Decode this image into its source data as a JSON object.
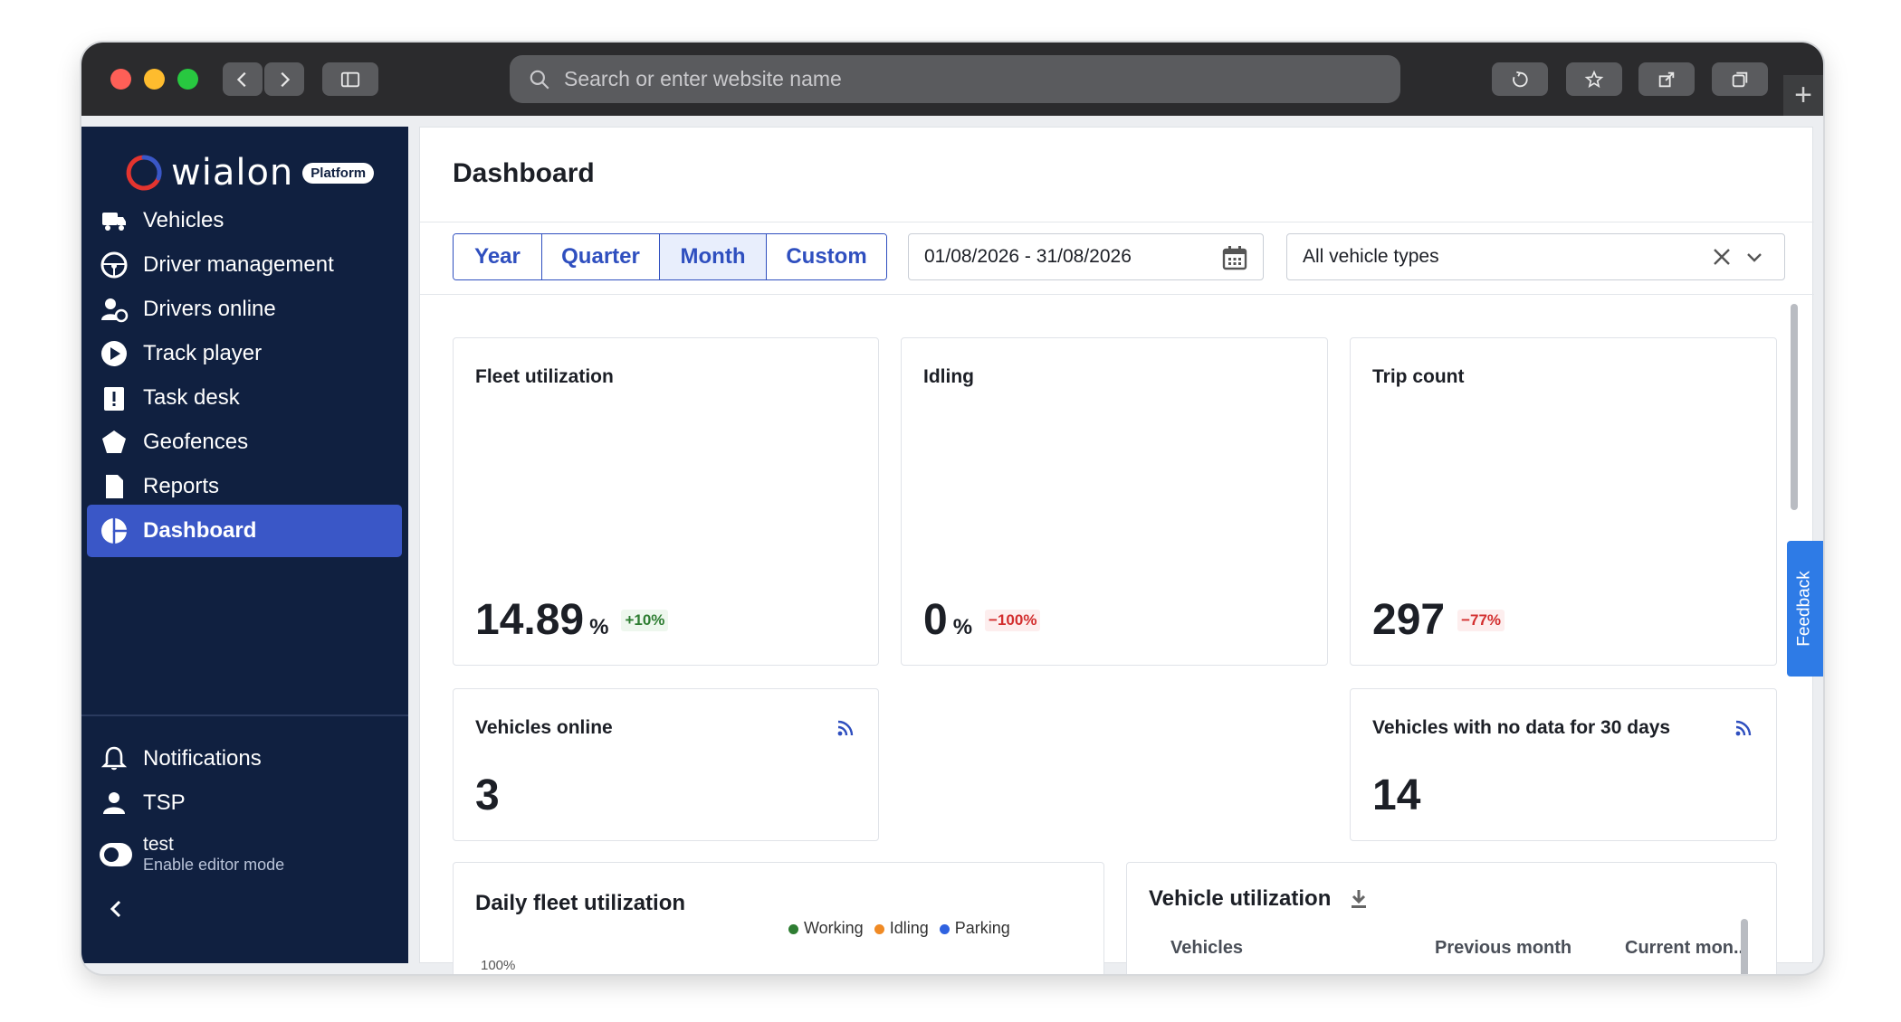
{
  "browser": {
    "address_placeholder": "Search or enter website name"
  },
  "sidebar": {
    "logo_text": "wialon",
    "logo_badge": "Platform",
    "items": [
      {
        "label": "Vehicles",
        "icon": "vehicles-icon"
      },
      {
        "label": "Driver management",
        "icon": "steering-wheel-icon"
      },
      {
        "label": "Drivers online",
        "icon": "driver-online-icon"
      },
      {
        "label": "Track player",
        "icon": "play-icon"
      },
      {
        "label": "Task desk",
        "icon": "clipboard-alert-icon"
      },
      {
        "label": "Geofences",
        "icon": "pentagon-icon"
      },
      {
        "label": "Reports",
        "icon": "document-icon"
      },
      {
        "label": "Dashboard",
        "icon": "pie-chart-icon",
        "active": true
      },
      {
        "label": "Notifications",
        "icon": "bell-icon"
      },
      {
        "label": "TSP",
        "icon": "person-icon"
      }
    ],
    "editor": {
      "name": "test",
      "sub": "Enable editor mode"
    }
  },
  "main": {
    "title": "Dashboard",
    "periods": [
      "Year",
      "Quarter",
      "Month",
      "Custom"
    ],
    "selected_period": "Month",
    "date_range": "01/08/2026 - 31/08/2026",
    "vehicle_type": "All vehicle types",
    "cards": {
      "fleet": {
        "title": "Fleet utilization",
        "value": "14.89",
        "unit": "%",
        "delta": "+10%"
      },
      "idling": {
        "title": "Idling",
        "value": "0",
        "unit": "%",
        "delta": "−100%"
      },
      "trips": {
        "title": "Trip count",
        "value": "297",
        "delta": "−77%"
      },
      "online": {
        "title": "Vehicles online",
        "value": "3"
      },
      "nodata": {
        "title": "Vehicles with no data for 30 days",
        "value": "14"
      }
    },
    "daily": {
      "title": "Daily fleet utilization",
      "legend": [
        "Working",
        "Idling",
        "Parking"
      ],
      "axis_top": "100%"
    },
    "utilization": {
      "title": "Vehicle utilization",
      "columns": [
        "Vehicles",
        "Previous month",
        "Current mon..."
      ]
    },
    "feedback": "Feedback"
  },
  "colors": {
    "sidebar_bg": "#102040",
    "accent": "#2f4fbf",
    "active_item": "#3a57c7",
    "working": "#2e7d32",
    "idling": "#f08a24",
    "parking": "#2f62e0"
  }
}
